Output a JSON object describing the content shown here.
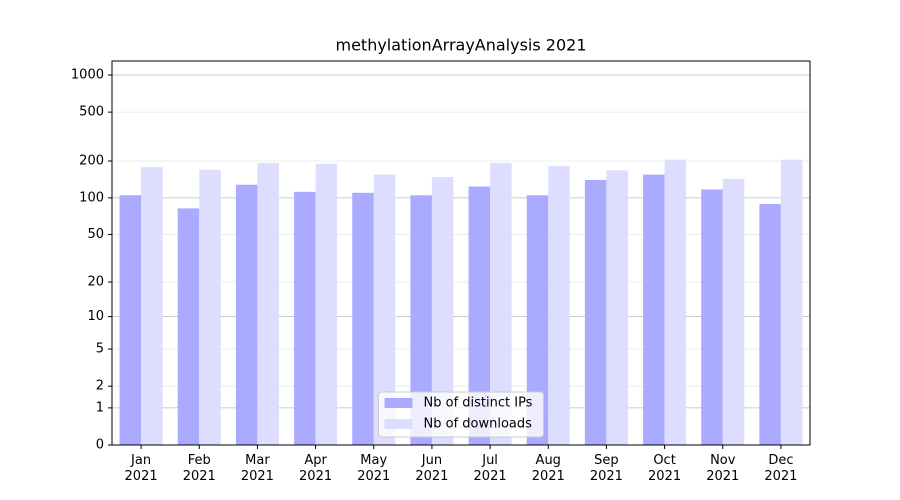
{
  "chart_data": {
    "type": "bar",
    "title": "methylationArrayAnalysis 2021",
    "categories": [
      "Jan\n2021",
      "Feb\n2021",
      "Mar\n2021",
      "Apr\n2021",
      "May\n2021",
      "Jun\n2021",
      "Jul\n2021",
      "Aug\n2021",
      "Sep\n2021",
      "Oct\n2021",
      "Nov\n2021",
      "Dec\n2021"
    ],
    "series": [
      {
        "name": "Nb of distinct IPs",
        "color": "#aaaaff",
        "values": [
          105,
          82,
          128,
          112,
          110,
          105,
          124,
          105,
          140,
          155,
          117,
          89
        ]
      },
      {
        "name": "Nb of downloads",
        "color": "#ddddff",
        "values": [
          178,
          170,
          193,
          190,
          155,
          148,
          193,
          182,
          168,
          205,
          143,
          205
        ]
      }
    ],
    "yscale": "log1p",
    "ylim": [
      0,
      1300
    ],
    "yticks": [
      0,
      1,
      2,
      5,
      10,
      20,
      50,
      100,
      200,
      500,
      1000
    ],
    "grid": true,
    "legend": "lower center"
  }
}
